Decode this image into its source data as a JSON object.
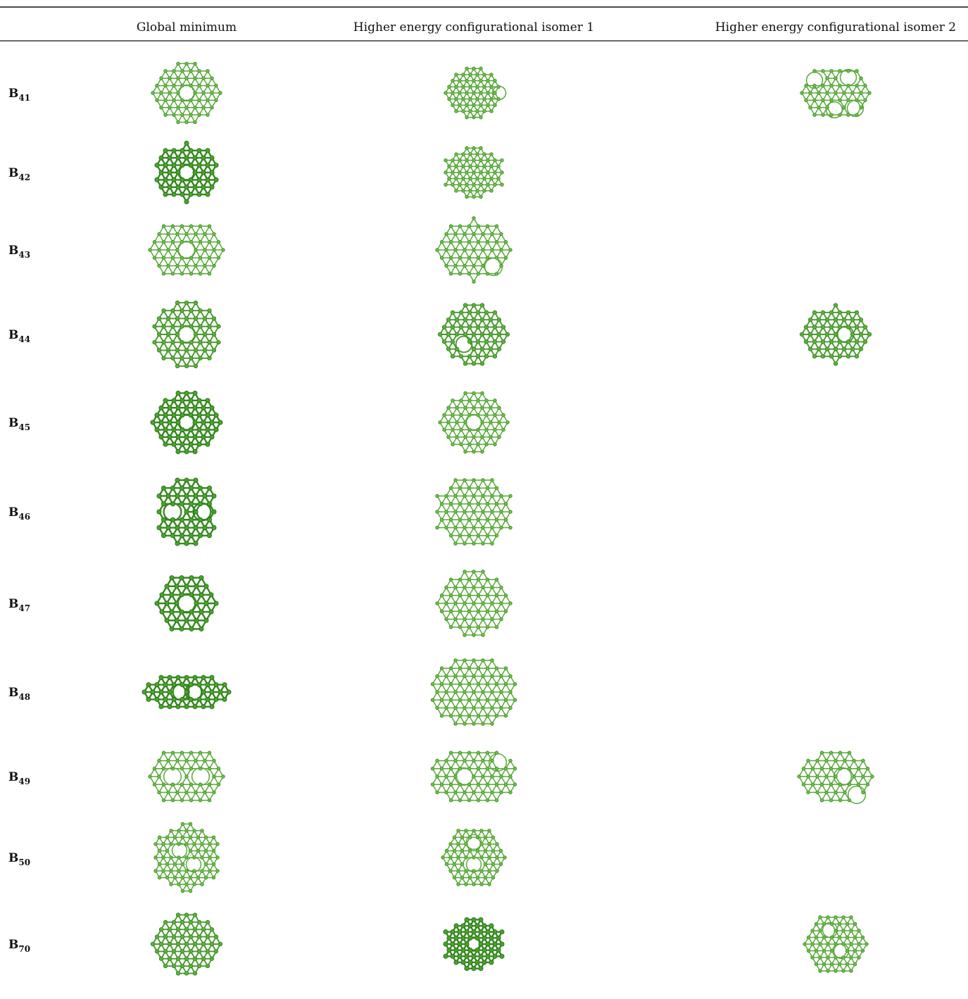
{
  "table": {
    "header": [
      "Global minimum",
      "Higher energy configurational isomer 1",
      "Higher energy configurational isomer 2"
    ],
    "rows": [
      {
        "base": "B",
        "sub": "41"
      },
      {
        "base": "B",
        "sub": "42"
      },
      {
        "base": "B",
        "sub": "43"
      },
      {
        "base": "B",
        "sub": "44"
      },
      {
        "base": "B",
        "sub": "45"
      },
      {
        "base": "B",
        "sub": "46"
      },
      {
        "base": "B",
        "sub": "47"
      },
      {
        "base": "B",
        "sub": "48"
      },
      {
        "base": "B",
        "sub": "49"
      },
      {
        "base": "B",
        "sub": "50"
      },
      {
        "base": "B",
        "sub": "70"
      }
    ]
  }
}
